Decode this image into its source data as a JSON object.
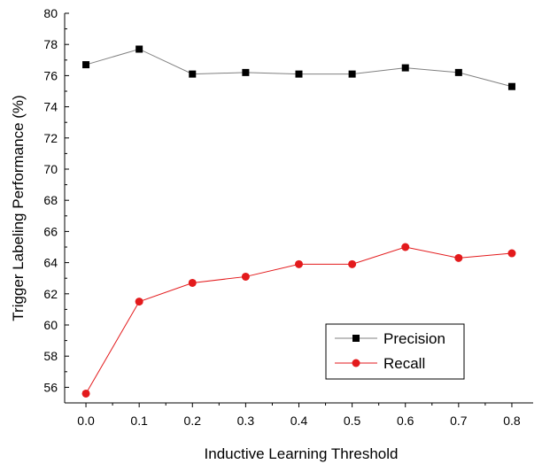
{
  "chart_data": {
    "type": "line",
    "x": [
      0.0,
      0.1,
      0.2,
      0.3,
      0.4,
      0.5,
      0.6,
      0.7,
      0.8
    ],
    "x_tick_labels": [
      "0.0",
      "0.1",
      "0.2",
      "0.3",
      "0.4",
      "0.5",
      "0.6",
      "0.7",
      "0.8"
    ],
    "y_tick_labels": [
      "56",
      "58",
      "60",
      "62",
      "64",
      "66",
      "68",
      "70",
      "72",
      "74",
      "76",
      "78",
      "80"
    ],
    "series": [
      {
        "name": "Precision",
        "marker": "square",
        "color": "#000000",
        "line_color": "#808080",
        "values": [
          76.7,
          77.7,
          76.1,
          76.2,
          76.1,
          76.1,
          76.5,
          76.2,
          75.3
        ]
      },
      {
        "name": "Recall",
        "marker": "circle",
        "color": "#e31a1c",
        "line_color": "#e31a1c",
        "values": [
          55.6,
          61.5,
          62.7,
          63.1,
          63.9,
          63.9,
          65.0,
          64.3,
          64.6
        ]
      }
    ],
    "xlabel": "Inductive Learning Threshold",
    "ylabel": "Trigger Labeling Performance (%)",
    "xlim": [
      -0.04,
      0.84
    ],
    "ylim": [
      55,
      80
    ],
    "grid": false,
    "legend_position": "bottom-right"
  }
}
